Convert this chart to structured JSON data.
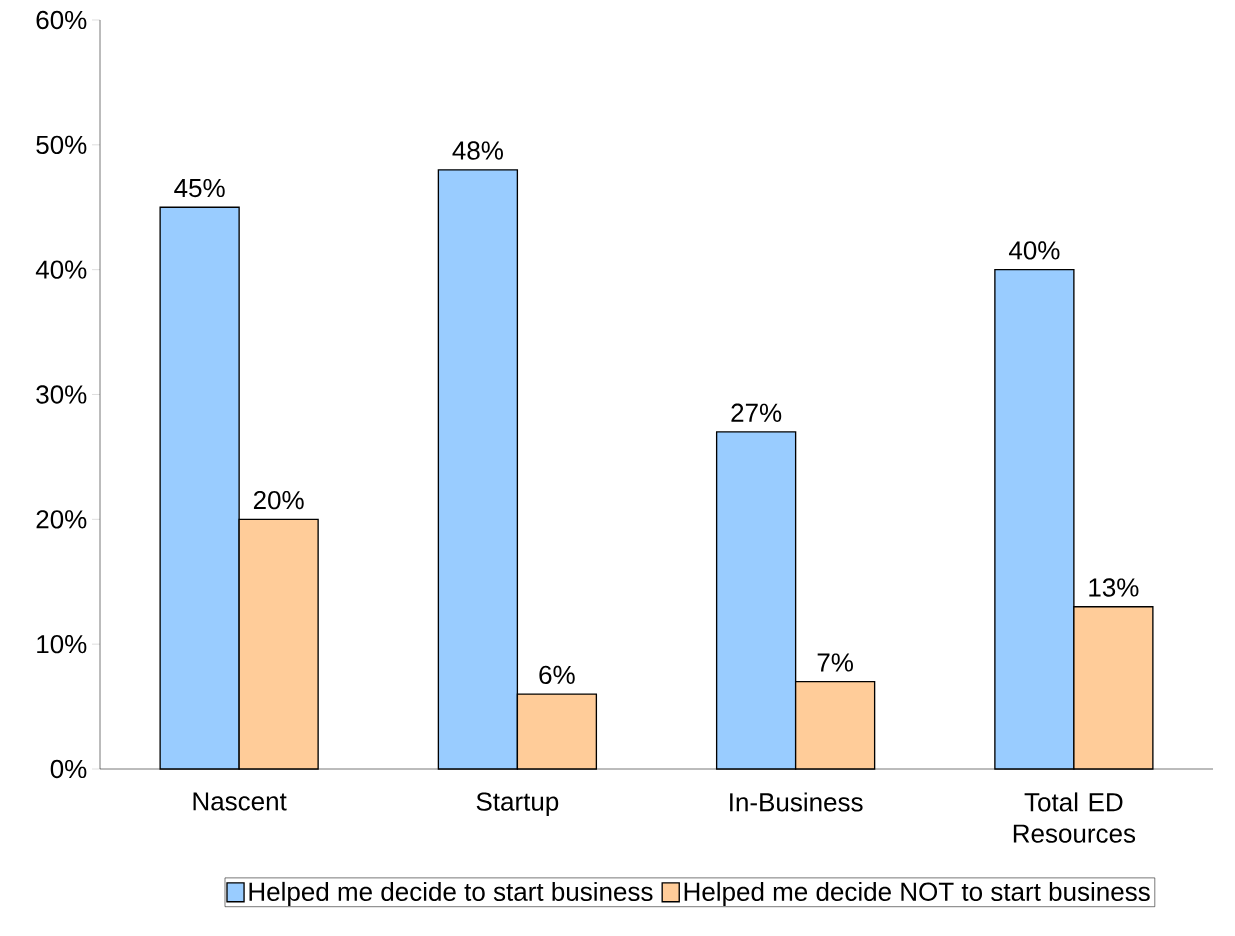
{
  "chart_data": {
    "type": "bar",
    "categories": [
      "Nascent",
      "Startup",
      "In-Business",
      "Total ED Resources"
    ],
    "series": [
      {
        "name": "Helped me decide to start business",
        "color": "#99ccff",
        "values": [
          45,
          48,
          27,
          40
        ],
        "value_labels": [
          "45%",
          "48%",
          "27%",
          "40%"
        ]
      },
      {
        "name": "Helped me decide NOT to start business",
        "color": "#ffcc99",
        "values": [
          20,
          6,
          7,
          13
        ],
        "value_labels": [
          "20%",
          "6%",
          "7%",
          "13%"
        ]
      }
    ],
    "ylim": [
      0,
      60
    ],
    "yticks": [
      {
        "value": 0,
        "label": "0%"
      },
      {
        "value": 10,
        "label": "10%"
      },
      {
        "value": 20,
        "label": "20%"
      },
      {
        "value": 30,
        "label": "30%"
      },
      {
        "value": 40,
        "label": "40%"
      },
      {
        "value": 50,
        "label": "50%"
      },
      {
        "value": 60,
        "label": "60%"
      }
    ],
    "legend": "bottom"
  }
}
